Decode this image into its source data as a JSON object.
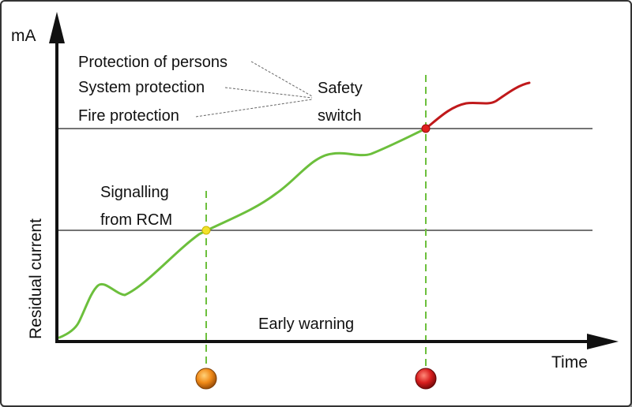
{
  "axes": {
    "y_unit": "mA",
    "y_label": "Residual current",
    "x_label": "Time"
  },
  "protection": {
    "persons": "Protection of persons",
    "system": "System protection",
    "fire": "Fire protection"
  },
  "safety_switch": {
    "line1": "Safety",
    "line2": "switch"
  },
  "signalling": {
    "line1": "Signalling",
    "line2": "from RCM"
  },
  "early_warning": "Early warning",
  "colors": {
    "axis": "#111111",
    "curve_normal": "#6cbf3c",
    "curve_trip": "#c0191b",
    "guide": "#6cbf3c",
    "threshold_line": "#222222",
    "warning_point": "#f2e22a",
    "trip_point": "#e0201e",
    "indicator_orange": "#f08a18",
    "indicator_red": "#d81e1e"
  }
}
